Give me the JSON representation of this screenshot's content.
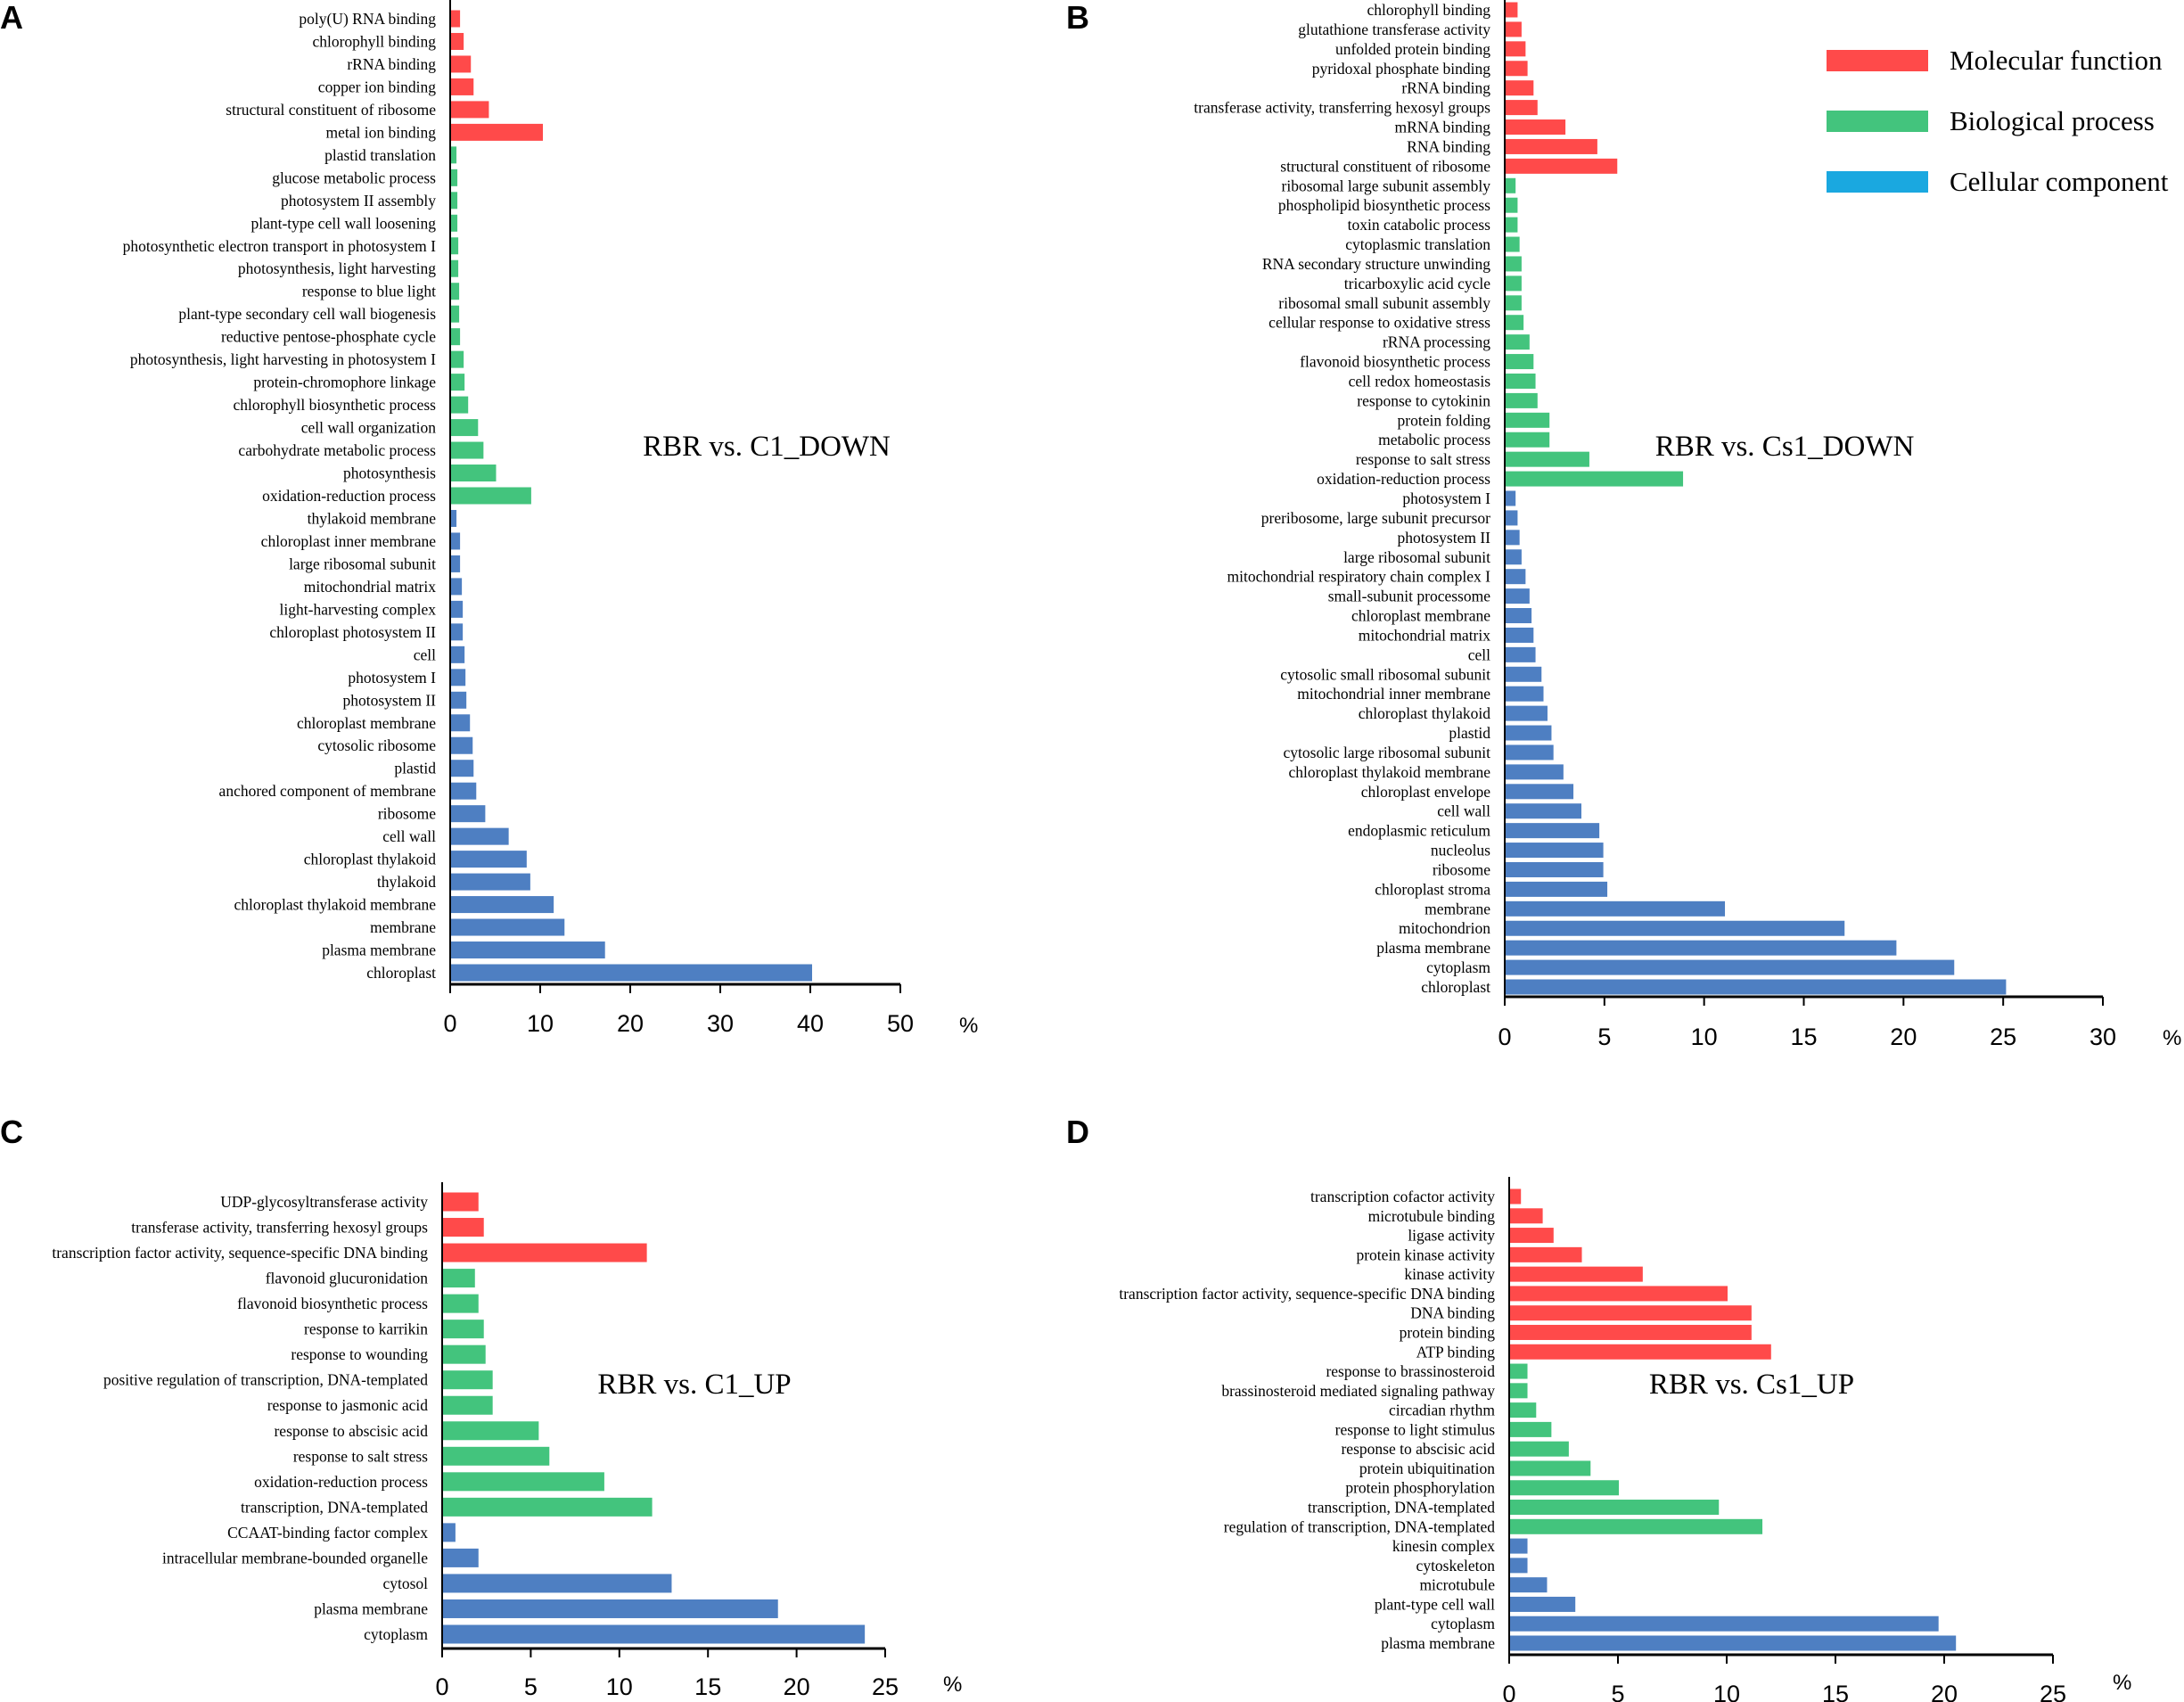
{
  "colors": {
    "molecular_function": "#ff4a4a",
    "biological_process": "#43c47d",
    "cellular_component": "#4e7fc2",
    "legend_cellular_component": "#1aa8e0",
    "axis": "#000000"
  },
  "legend": {
    "items": [
      {
        "label": "Molecular function",
        "key": "molecular_function"
      },
      {
        "label": "Biological process",
        "key": "biological_process"
      },
      {
        "label": "Cellular component",
        "key": "cellular_component"
      }
    ]
  },
  "chart_data": [
    {
      "panel": "A",
      "type": "bar",
      "orientation": "horizontal",
      "title": "RBR vs. C1_DOWN",
      "unit": "%",
      "xlim": [
        0,
        50
      ],
      "xticks": [
        0,
        10,
        20,
        30,
        40,
        50
      ],
      "bars": [
        {
          "label": "poly(U) RNA binding",
          "value": 1.0,
          "group": "molecular_function"
        },
        {
          "label": "chlorophyll binding",
          "value": 1.4,
          "group": "molecular_function"
        },
        {
          "label": "rRNA binding",
          "value": 2.2,
          "group": "molecular_function"
        },
        {
          "label": "copper ion binding",
          "value": 2.5,
          "group": "molecular_function"
        },
        {
          "label": "structural constituent of ribosome",
          "value": 4.2,
          "group": "molecular_function"
        },
        {
          "label": "metal ion binding",
          "value": 10.2,
          "group": "molecular_function"
        },
        {
          "label": "plastid translation",
          "value": 0.6,
          "group": "biological_process"
        },
        {
          "label": "glucose metabolic process",
          "value": 0.7,
          "group": "biological_process"
        },
        {
          "label": "photosystem II assembly",
          "value": 0.7,
          "group": "biological_process"
        },
        {
          "label": "plant-type cell wall loosening",
          "value": 0.7,
          "group": "biological_process"
        },
        {
          "label": "photosynthetic electron transport in photosystem I",
          "value": 0.8,
          "group": "biological_process"
        },
        {
          "label": "photosynthesis, light harvesting",
          "value": 0.8,
          "group": "biological_process"
        },
        {
          "label": "response to blue light",
          "value": 0.9,
          "group": "biological_process"
        },
        {
          "label": "plant-type secondary cell wall biogenesis",
          "value": 0.9,
          "group": "biological_process"
        },
        {
          "label": "reductive pentose-phosphate cycle",
          "value": 1.0,
          "group": "biological_process"
        },
        {
          "label": "photosynthesis, light harvesting in photosystem I",
          "value": 1.4,
          "group": "biological_process"
        },
        {
          "label": "protein-chromophore linkage",
          "value": 1.5,
          "group": "biological_process"
        },
        {
          "label": "chlorophyll biosynthetic process",
          "value": 1.9,
          "group": "biological_process"
        },
        {
          "label": "cell wall organization",
          "value": 3.0,
          "group": "biological_process"
        },
        {
          "label": "carbohydrate metabolic process",
          "value": 3.6,
          "group": "biological_process"
        },
        {
          "label": "photosynthesis",
          "value": 5.0,
          "group": "biological_process"
        },
        {
          "label": "oxidation-reduction process",
          "value": 8.9,
          "group": "biological_process"
        },
        {
          "label": "thylakoid membrane",
          "value": 0.6,
          "group": "cellular_component"
        },
        {
          "label": "chloroplast inner membrane",
          "value": 1.0,
          "group": "cellular_component"
        },
        {
          "label": "large ribosomal subunit",
          "value": 1.0,
          "group": "cellular_component"
        },
        {
          "label": "mitochondrial matrix",
          "value": 1.2,
          "group": "cellular_component"
        },
        {
          "label": "light-harvesting complex",
          "value": 1.3,
          "group": "cellular_component"
        },
        {
          "label": "chloroplast photosystem II",
          "value": 1.3,
          "group": "cellular_component"
        },
        {
          "label": "cell",
          "value": 1.5,
          "group": "cellular_component"
        },
        {
          "label": "photosystem I",
          "value": 1.6,
          "group": "cellular_component"
        },
        {
          "label": "photosystem II",
          "value": 1.7,
          "group": "cellular_component"
        },
        {
          "label": "chloroplast membrane",
          "value": 2.1,
          "group": "cellular_component"
        },
        {
          "label": "cytosolic ribosome",
          "value": 2.4,
          "group": "cellular_component"
        },
        {
          "label": "plastid",
          "value": 2.5,
          "group": "cellular_component"
        },
        {
          "label": "anchored component of membrane",
          "value": 2.8,
          "group": "cellular_component"
        },
        {
          "label": "ribosome",
          "value": 3.8,
          "group": "cellular_component"
        },
        {
          "label": "cell wall",
          "value": 6.4,
          "group": "cellular_component"
        },
        {
          "label": "chloroplast thylakoid",
          "value": 8.4,
          "group": "cellular_component"
        },
        {
          "label": "thylakoid",
          "value": 8.8,
          "group": "cellular_component"
        },
        {
          "label": "chloroplast thylakoid membrane",
          "value": 11.4,
          "group": "cellular_component"
        },
        {
          "label": "membrane",
          "value": 12.6,
          "group": "cellular_component"
        },
        {
          "label": "plasma membrane",
          "value": 17.1,
          "group": "cellular_component"
        },
        {
          "label": "chloroplast",
          "value": 40.1,
          "group": "cellular_component"
        }
      ]
    },
    {
      "panel": "B",
      "type": "bar",
      "orientation": "horizontal",
      "title": "RBR vs. Cs1_DOWN",
      "unit": "%",
      "xlim": [
        0,
        30
      ],
      "xticks": [
        0,
        5,
        10,
        15,
        20,
        25,
        30
      ],
      "bars": [
        {
          "label": "chlorophyll binding",
          "value": 0.6,
          "group": "molecular_function"
        },
        {
          "label": "glutathione transferase activity",
          "value": 0.8,
          "group": "molecular_function"
        },
        {
          "label": "unfolded protein binding",
          "value": 1.0,
          "group": "molecular_function"
        },
        {
          "label": "pyridoxal phosphate binding",
          "value": 1.1,
          "group": "molecular_function"
        },
        {
          "label": "rRNA binding",
          "value": 1.4,
          "group": "molecular_function"
        },
        {
          "label": "transferase activity, transferring hexosyl groups",
          "value": 1.6,
          "group": "molecular_function"
        },
        {
          "label": "mRNA binding",
          "value": 3.0,
          "group": "molecular_function"
        },
        {
          "label": "RNA binding",
          "value": 4.6,
          "group": "molecular_function"
        },
        {
          "label": "structural constituent of ribosome",
          "value": 5.6,
          "group": "molecular_function"
        },
        {
          "label": "ribosomal large subunit assembly",
          "value": 0.5,
          "group": "biological_process"
        },
        {
          "label": "phospholipid biosynthetic process",
          "value": 0.6,
          "group": "biological_process"
        },
        {
          "label": "toxin catabolic process",
          "value": 0.6,
          "group": "biological_process"
        },
        {
          "label": "cytoplasmic translation",
          "value": 0.7,
          "group": "biological_process"
        },
        {
          "label": "RNA secondary structure unwinding",
          "value": 0.8,
          "group": "biological_process"
        },
        {
          "label": "tricarboxylic acid cycle",
          "value": 0.8,
          "group": "biological_process"
        },
        {
          "label": "ribosomal small subunit assembly",
          "value": 0.8,
          "group": "biological_process"
        },
        {
          "label": "cellular response to oxidative stress",
          "value": 0.9,
          "group": "biological_process"
        },
        {
          "label": "rRNA processing",
          "value": 1.2,
          "group": "biological_process"
        },
        {
          "label": "flavonoid biosynthetic process",
          "value": 1.4,
          "group": "biological_process"
        },
        {
          "label": "cell redox homeostasis",
          "value": 1.5,
          "group": "biological_process"
        },
        {
          "label": "response to cytokinin",
          "value": 1.6,
          "group": "biological_process"
        },
        {
          "label": "protein folding",
          "value": 2.2,
          "group": "biological_process"
        },
        {
          "label": "metabolic process",
          "value": 2.2,
          "group": "biological_process"
        },
        {
          "label": "response to salt stress",
          "value": 4.2,
          "group": "biological_process"
        },
        {
          "label": "oxidation-reduction process",
          "value": 8.9,
          "group": "biological_process"
        },
        {
          "label": "photosystem I",
          "value": 0.5,
          "group": "cellular_component"
        },
        {
          "label": "preribosome, large subunit precursor",
          "value": 0.6,
          "group": "cellular_component"
        },
        {
          "label": "photosystem II",
          "value": 0.7,
          "group": "cellular_component"
        },
        {
          "label": "large ribosomal subunit",
          "value": 0.8,
          "group": "cellular_component"
        },
        {
          "label": "mitochondrial respiratory chain complex I",
          "value": 1.0,
          "group": "cellular_component"
        },
        {
          "label": "small-subunit processome",
          "value": 1.2,
          "group": "cellular_component"
        },
        {
          "label": "chloroplast membrane",
          "value": 1.3,
          "group": "cellular_component"
        },
        {
          "label": "mitochondrial matrix",
          "value": 1.4,
          "group": "cellular_component"
        },
        {
          "label": "cell",
          "value": 1.5,
          "group": "cellular_component"
        },
        {
          "label": "cytosolic small ribosomal subunit",
          "value": 1.8,
          "group": "cellular_component"
        },
        {
          "label": "mitochondrial inner membrane",
          "value": 1.9,
          "group": "cellular_component"
        },
        {
          "label": "chloroplast thylakoid",
          "value": 2.1,
          "group": "cellular_component"
        },
        {
          "label": "plastid",
          "value": 2.3,
          "group": "cellular_component"
        },
        {
          "label": "cytosolic large ribosomal subunit",
          "value": 2.4,
          "group": "cellular_component"
        },
        {
          "label": "chloroplast thylakoid membrane",
          "value": 2.9,
          "group": "cellular_component"
        },
        {
          "label": "chloroplast envelope",
          "value": 3.4,
          "group": "cellular_component"
        },
        {
          "label": "cell wall",
          "value": 3.8,
          "group": "cellular_component"
        },
        {
          "label": "endoplasmic reticulum",
          "value": 4.7,
          "group": "cellular_component"
        },
        {
          "label": "nucleolus",
          "value": 4.9,
          "group": "cellular_component"
        },
        {
          "label": "ribosome",
          "value": 4.9,
          "group": "cellular_component"
        },
        {
          "label": "chloroplast stroma",
          "value": 5.1,
          "group": "cellular_component"
        },
        {
          "label": "membrane",
          "value": 11.0,
          "group": "cellular_component"
        },
        {
          "label": "mitochondrion",
          "value": 17.0,
          "group": "cellular_component"
        },
        {
          "label": "plasma membrane",
          "value": 19.6,
          "group": "cellular_component"
        },
        {
          "label": "cytoplasm",
          "value": 22.5,
          "group": "cellular_component"
        },
        {
          "label": "chloroplast",
          "value": 25.1,
          "group": "cellular_component"
        }
      ]
    },
    {
      "panel": "C",
      "type": "bar",
      "orientation": "horizontal",
      "title": "RBR vs. C1_UP",
      "unit": "%",
      "xlim": [
        0,
        25
      ],
      "xticks": [
        0,
        5,
        10,
        15,
        20,
        25
      ],
      "bars": [
        {
          "label": "UDP-glycosyltransferase activity",
          "value": 2.0,
          "group": "molecular_function"
        },
        {
          "label": "transferase activity, transferring hexosyl groups",
          "value": 2.3,
          "group": "molecular_function"
        },
        {
          "label": "transcription factor activity, sequence-specific DNA binding",
          "value": 11.5,
          "group": "molecular_function"
        },
        {
          "label": "flavonoid glucuronidation",
          "value": 1.8,
          "group": "biological_process"
        },
        {
          "label": "flavonoid biosynthetic process",
          "value": 2.0,
          "group": "biological_process"
        },
        {
          "label": "response to karrikin",
          "value": 2.3,
          "group": "biological_process"
        },
        {
          "label": "response to wounding",
          "value": 2.4,
          "group": "biological_process"
        },
        {
          "label": "positive regulation of transcription, DNA-templated",
          "value": 2.8,
          "group": "biological_process"
        },
        {
          "label": "response to jasmonic acid",
          "value": 2.8,
          "group": "biological_process"
        },
        {
          "label": "response to abscisic acid",
          "value": 5.4,
          "group": "biological_process"
        },
        {
          "label": "response to salt stress",
          "value": 6.0,
          "group": "biological_process"
        },
        {
          "label": "oxidation-reduction process",
          "value": 9.1,
          "group": "biological_process"
        },
        {
          "label": "transcription, DNA-templated",
          "value": 11.8,
          "group": "biological_process"
        },
        {
          "label": "CCAAT-binding factor complex",
          "value": 0.7,
          "group": "cellular_component"
        },
        {
          "label": "intracellular membrane-bounded organelle",
          "value": 2.0,
          "group": "cellular_component"
        },
        {
          "label": "cytosol",
          "value": 12.9,
          "group": "cellular_component"
        },
        {
          "label": "plasma membrane",
          "value": 18.9,
          "group": "cellular_component"
        },
        {
          "label": "cytoplasm",
          "value": 23.8,
          "group": "cellular_component"
        }
      ]
    },
    {
      "panel": "D",
      "type": "bar",
      "orientation": "horizontal",
      "title": "RBR vs. Cs1_UP",
      "unit": "%",
      "xlim": [
        0,
        25
      ],
      "xticks": [
        0,
        5,
        10,
        15,
        20,
        25
      ],
      "bars": [
        {
          "label": "transcription cofactor activity",
          "value": 0.5,
          "group": "molecular_function"
        },
        {
          "label": "microtubule binding",
          "value": 1.5,
          "group": "molecular_function"
        },
        {
          "label": "ligase activity",
          "value": 2.0,
          "group": "molecular_function"
        },
        {
          "label": "protein kinase activity",
          "value": 3.3,
          "group": "molecular_function"
        },
        {
          "label": "kinase activity",
          "value": 6.1,
          "group": "molecular_function"
        },
        {
          "label": "transcription factor activity, sequence-specific DNA binding",
          "value": 10.0,
          "group": "molecular_function"
        },
        {
          "label": "DNA binding",
          "value": 11.1,
          "group": "molecular_function"
        },
        {
          "label": "protein binding",
          "value": 11.1,
          "group": "molecular_function"
        },
        {
          "label": "ATP binding",
          "value": 12.0,
          "group": "molecular_function"
        },
        {
          "label": "response to brassinosteroid",
          "value": 0.8,
          "group": "biological_process"
        },
        {
          "label": "brassinosteroid mediated signaling pathway",
          "value": 0.8,
          "group": "biological_process"
        },
        {
          "label": "circadian rhythm",
          "value": 1.2,
          "group": "biological_process"
        },
        {
          "label": "response to light stimulus",
          "value": 1.9,
          "group": "biological_process"
        },
        {
          "label": "response to abscisic acid",
          "value": 2.7,
          "group": "biological_process"
        },
        {
          "label": "protein ubiquitination",
          "value": 3.7,
          "group": "biological_process"
        },
        {
          "label": "protein phosphorylation",
          "value": 5.0,
          "group": "biological_process"
        },
        {
          "label": "transcription, DNA-templated",
          "value": 9.6,
          "group": "biological_process"
        },
        {
          "label": "regulation of transcription, DNA-templated",
          "value": 11.6,
          "group": "biological_process"
        },
        {
          "label": "kinesin complex",
          "value": 0.8,
          "group": "cellular_component"
        },
        {
          "label": "cytoskeleton",
          "value": 0.8,
          "group": "cellular_component"
        },
        {
          "label": "microtubule",
          "value": 1.7,
          "group": "cellular_component"
        },
        {
          "label": "plant-type cell wall",
          "value": 3.0,
          "group": "cellular_component"
        },
        {
          "label": "cytoplasm",
          "value": 19.7,
          "group": "cellular_component"
        },
        {
          "label": "plasma membrane",
          "value": 20.5,
          "group": "cellular_component"
        }
      ]
    }
  ]
}
